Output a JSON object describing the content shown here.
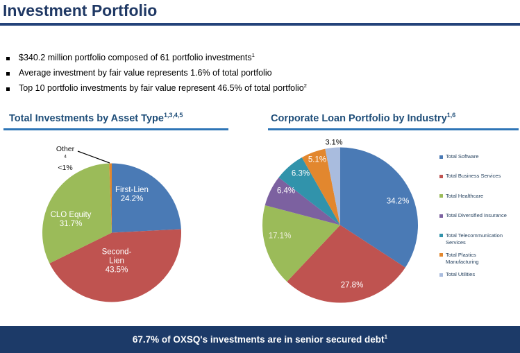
{
  "header": {
    "title": "Investment Portfolio"
  },
  "bullets": [
    {
      "text": "$340.2 million portfolio composed of 61 portfolio investments",
      "sup": "1"
    },
    {
      "text": "Average investment by fair value represents 1.6% of total portfolio",
      "sup": ""
    },
    {
      "text": "Top 10 portfolio investments by fair value represent 46.5% of total portfolio",
      "sup": "2"
    }
  ],
  "footer": {
    "text": "67.7% of OXSQ's investments are in senior secured debt",
    "sup": "1"
  },
  "colors": {
    "title_navy": "#1F3864",
    "section_title_navy": "#1F4E79",
    "underline_blue": "#2E75B6",
    "footer_bg": "#1C3A68",
    "blue": "#4A7AB5",
    "red": "#BF5350",
    "green": "#9BBB59",
    "purple": "#7C61A0",
    "teal": "#3193AB",
    "orange": "#E2872E",
    "lavender": "#A9BCDE"
  },
  "chart_data": [
    {
      "type": "pie",
      "title": "Total Investments by Asset Type",
      "title_sup": "1,3,4,5",
      "legend_position": "none",
      "start_angle_deg": 0,
      "direction": "clockwise",
      "slices": [
        {
          "name": "First-Lien",
          "value": 24.2,
          "pct_text": "24.2%",
          "color": "#4A7AB5",
          "label_lines": [
            "First-Lien",
            "24.2%"
          ]
        },
        {
          "name": "Second-Lien",
          "value": 43.5,
          "pct_text": "43.5%",
          "color": "#BF5350",
          "label_lines": [
            "Second-",
            "Lien",
            "43.5%"
          ]
        },
        {
          "name": "CLO Equity",
          "value": 31.7,
          "pct_text": "31.7%",
          "color": "#9BBB59",
          "label_lines": [
            "CLO Equity",
            "31.7%"
          ]
        },
        {
          "name": "Other",
          "name_sup": "4",
          "value": 0.6,
          "pct_text": "<1%",
          "color": "#E2872E",
          "callout": true
        }
      ]
    },
    {
      "type": "pie",
      "title": "Corporate Loan Portfolio by Industry",
      "title_sup": "1,6",
      "legend_position": "right",
      "start_angle_deg": 0,
      "direction": "clockwise",
      "slices": [
        {
          "name": "Total Software",
          "value": 34.2,
          "pct_text": "34.2%",
          "color": "#4A7AB5"
        },
        {
          "name": "Total Business Services",
          "value": 27.8,
          "pct_text": "27.8%",
          "color": "#BF5350"
        },
        {
          "name": "Total Healthcare",
          "value": 17.1,
          "pct_text": "17.1%",
          "color": "#9BBB59"
        },
        {
          "name": "Total Diversified Insurance",
          "value": 6.4,
          "pct_text": "6.4%",
          "color": "#7C61A0"
        },
        {
          "name": "Total Telecommunication Services",
          "value": 6.3,
          "pct_text": "6.3%",
          "color": "#3193AB"
        },
        {
          "name": "Total Plastics Manufacturing",
          "value": 5.1,
          "pct_text": "5.1%",
          "color": "#E2872E"
        },
        {
          "name": "Total Utilities",
          "value": 3.1,
          "pct_text": "3.1%",
          "color": "#A9BCDE"
        }
      ]
    }
  ]
}
